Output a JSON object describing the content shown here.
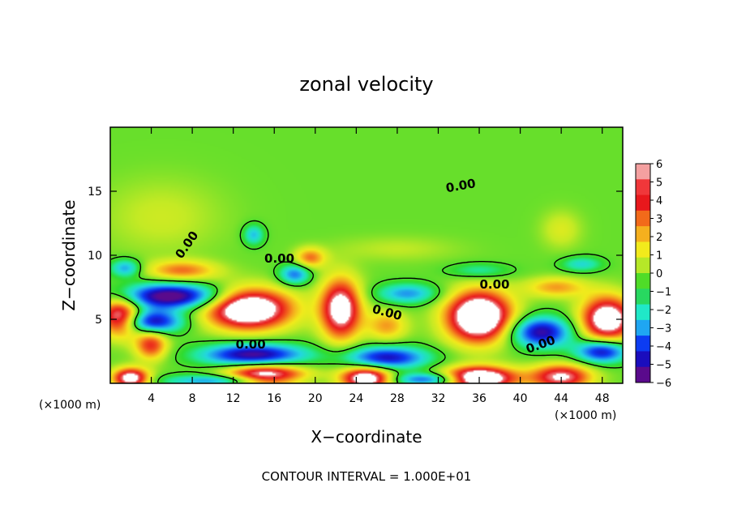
{
  "chart_data": {
    "type": "heatmap",
    "title": "zonal velocity",
    "xlabel": "X−coordinate",
    "ylabel": "Z−coordinate",
    "x_unit_label": "(×1000 m)",
    "x_unit_label_right": "(×1000 m)",
    "footnote": "CONTOUR INTERVAL = 1.000E+01",
    "xlim": [
      0,
      50
    ],
    "ylim": [
      0,
      20
    ],
    "xticks": [
      4,
      8,
      12,
      16,
      20,
      24,
      28,
      32,
      36,
      40,
      44,
      48
    ],
    "yticks": [
      5,
      10,
      15
    ],
    "colorbar": {
      "min": -6,
      "max": 6,
      "ticks": [
        6,
        5,
        4,
        3,
        2,
        1,
        0,
        -1,
        -2,
        -3,
        -4,
        -5,
        -6
      ],
      "tick_labels": [
        "6",
        "5",
        "4",
        "3",
        "2",
        "1",
        "0",
        "−1",
        "−2",
        "−3",
        "−4",
        "−5",
        "−6"
      ],
      "colors": [
        "#5a0a8c",
        "#1a0dbd",
        "#0c3cf2",
        "#1f8ff0",
        "#23d6e0",
        "#20e8a0",
        "#2fdb2f",
        "#6fe02a",
        "#c4ea24",
        "#f2ea1c",
        "#f5a81e",
        "#f15a1c",
        "#e8181c",
        "#f08a8a"
      ],
      "over_color": "#ffffff"
    },
    "contour_labels": [
      {
        "text": "0.00",
        "x": 7.5,
        "z": 10.8,
        "angle": -55
      },
      {
        "text": "0.00",
        "x": 16.5,
        "z": 9.7,
        "angle": 0
      },
      {
        "text": "0.00",
        "x": 27.0,
        "z": 5.5,
        "angle": 15
      },
      {
        "text": "0.00",
        "x": 34.2,
        "z": 15.4,
        "angle": -10
      },
      {
        "text": "0.00",
        "x": 37.5,
        "z": 7.7,
        "angle": 0
      },
      {
        "text": "0.00",
        "x": 13.7,
        "z": 3.0,
        "angle": 0
      },
      {
        "text": "0.00",
        "x": 42.0,
        "z": 3.0,
        "angle": -20
      }
    ],
    "features": [
      {
        "x": 13.5,
        "z": 5.8,
        "amplitude": 8.5,
        "sx": 4.2,
        "sz": 1.6
      },
      {
        "x": 22.5,
        "z": 5.8,
        "amplitude": 7.0,
        "sx": 2.0,
        "sz": 2.4
      },
      {
        "x": 36.0,
        "z": 5.2,
        "amplitude": 9.0,
        "sx": 3.2,
        "sz": 2.0
      },
      {
        "x": 48.5,
        "z": 5.0,
        "amplitude": 7.5,
        "sx": 2.6,
        "sz": 1.8
      },
      {
        "x": 1.0,
        "z": 5.2,
        "amplitude": 7.0,
        "sx": 2.0,
        "sz": 1.5
      },
      {
        "x": 4.0,
        "z": 3.0,
        "amplitude": 4.5,
        "sx": 1.6,
        "sz": 1.2
      },
      {
        "x": 15.0,
        "z": 0.5,
        "amplitude": 8.0,
        "sx": 4.0,
        "sz": 1.0
      },
      {
        "x": 25.0,
        "z": 0.4,
        "amplitude": 7.5,
        "sx": 2.5,
        "sz": 0.9
      },
      {
        "x": 36.0,
        "z": 0.4,
        "amplitude": 8.5,
        "sx": 3.5,
        "sz": 0.9
      },
      {
        "x": 44.0,
        "z": 0.5,
        "amplitude": 6.0,
        "sx": 3.0,
        "sz": 1.0
      },
      {
        "x": 2.0,
        "z": 0.4,
        "amplitude": 7.0,
        "sx": 1.8,
        "sz": 0.8
      },
      {
        "x": 7.0,
        "z": 8.8,
        "amplitude": 3.5,
        "sx": 3.5,
        "sz": 0.8
      },
      {
        "x": 19.5,
        "z": 9.8,
        "amplitude": 3.5,
        "sx": 1.5,
        "sz": 0.8
      },
      {
        "x": 43.5,
        "z": 7.5,
        "amplitude": 3.0,
        "sx": 3.0,
        "sz": 0.8
      },
      {
        "x": 27.0,
        "z": 4.5,
        "amplitude": 3.0,
        "sx": 2.0,
        "sz": 1.2
      },
      {
        "x": 6.0,
        "z": 6.8,
        "amplitude": -7.0,
        "sx": 5.0,
        "sz": 1.0
      },
      {
        "x": 4.0,
        "z": 4.8,
        "amplitude": -6.0,
        "sx": 3.0,
        "sz": 0.9
      },
      {
        "x": 14.0,
        "z": 2.2,
        "amplitude": -6.5,
        "sx": 5.0,
        "sz": 0.9
      },
      {
        "x": 27.0,
        "z": 2.0,
        "amplitude": -5.5,
        "sx": 4.0,
        "sz": 0.9
      },
      {
        "x": 42.0,
        "z": 4.0,
        "amplitude": -6.0,
        "sx": 3.0,
        "sz": 1.2
      },
      {
        "x": 48.0,
        "z": 2.5,
        "amplitude": -6.0,
        "sx": 2.5,
        "sz": 0.9
      },
      {
        "x": 18.0,
        "z": 8.5,
        "amplitude": -4.0,
        "sx": 1.5,
        "sz": 0.8
      },
      {
        "x": 29.0,
        "z": 7.0,
        "amplitude": -3.5,
        "sx": 3.0,
        "sz": 0.8
      },
      {
        "x": 14.0,
        "z": 11.6,
        "amplitude": -3.0,
        "sx": 1.0,
        "sz": 0.8
      },
      {
        "x": 36.0,
        "z": 8.8,
        "amplitude": -2.0,
        "sx": 3.0,
        "sz": 0.6
      },
      {
        "x": 46.0,
        "z": 9.3,
        "amplitude": -2.5,
        "sx": 2.0,
        "sz": 0.6
      },
      {
        "x": 1.5,
        "z": 9.0,
        "amplitude": -3.5,
        "sx": 1.5,
        "sz": 0.7
      },
      {
        "x": 12.0,
        "z": 0.2,
        "amplitude": -5.0,
        "sx": 6.0,
        "sz": 0.5
      },
      {
        "x": 31.0,
        "z": 0.3,
        "amplitude": -4.5,
        "sx": 3.5,
        "sz": 0.5
      },
      {
        "x": 5.0,
        "z": 13.0,
        "amplitude": 1.2,
        "sx": 6.0,
        "sz": 3.0
      },
      {
        "x": 44.0,
        "z": 12.0,
        "amplitude": 1.5,
        "sx": 2.0,
        "sz": 1.5
      },
      {
        "x": 28.0,
        "z": 10.5,
        "amplitude": 1.0,
        "sx": 6.0,
        "sz": 1.0
      }
    ]
  }
}
